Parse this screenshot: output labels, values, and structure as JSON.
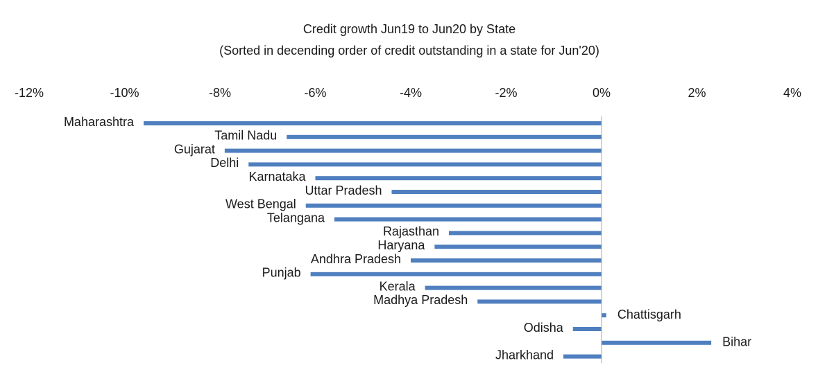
{
  "chart_data": {
    "type": "bar",
    "orientation": "horizontal",
    "title": "Credit growth Jun19 to Jun20 by State",
    "subtitle": "(Sorted in decending order of credit outstanding in a state for Jun'20)",
    "categories": [
      "Maharashtra",
      "Tamil Nadu",
      "Gujarat",
      "Delhi",
      "Karnataka",
      "Uttar Pradesh",
      "West Bengal",
      "Telangana",
      "Rajasthan",
      "Haryana",
      "Andhra Pradesh",
      "Punjab",
      "Kerala",
      "Madhya Pradesh",
      "Chattisgarh",
      "Odisha",
      "Bihar",
      "Jharkhand"
    ],
    "values": [
      -9.6,
      -6.6,
      -7.9,
      -7.4,
      -6.0,
      -4.4,
      -6.2,
      -5.6,
      -3.2,
      -3.5,
      -4.0,
      -6.1,
      -3.7,
      -2.6,
      0.1,
      -0.6,
      2.3,
      -0.8
    ],
    "color": "#4f7fbf",
    "xlim": [
      -12,
      4
    ],
    "xticks": [
      {
        "value": -12,
        "label": "-12%"
      },
      {
        "value": -10,
        "label": "-10%"
      },
      {
        "value": -8,
        "label": "-8%"
      },
      {
        "value": -6,
        "label": "-6%"
      },
      {
        "value": -4,
        "label": "-4%"
      },
      {
        "value": -2,
        "label": "-2%"
      },
      {
        "value": 0,
        "label": "0%"
      },
      {
        "value": 2,
        "label": "2%"
      },
      {
        "value": 4,
        "label": "4%"
      }
    ],
    "grid": false
  }
}
